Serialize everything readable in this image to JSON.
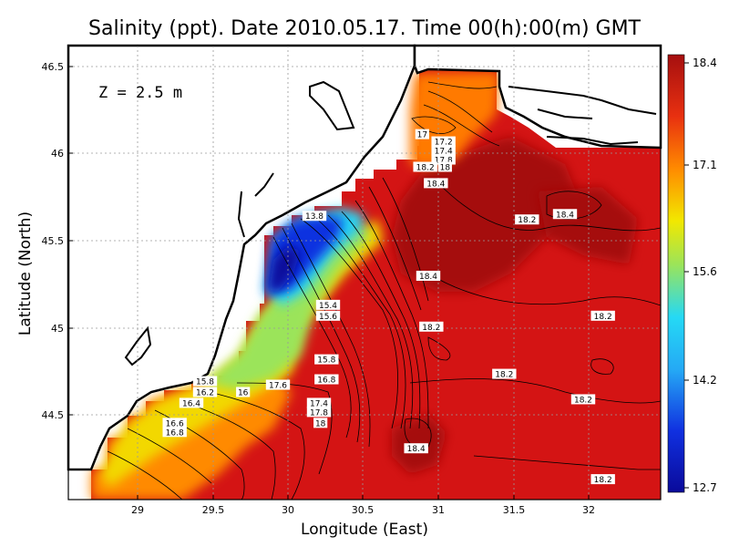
{
  "title": "Salinity (ppt). Date 2010.05.17. Time 00(h):00(m) GMT",
  "depth_label": "Z = 2.5 m",
  "colors": {
    "deep_red": "#a50f0f",
    "red": "#d41414",
    "orange": "#ff8a00",
    "yellow": "#f2e800",
    "green": "#9be45a",
    "cyan": "#25d9f5",
    "blue": "#1030e0",
    "navy": "#0a0a9a",
    "land": "#ffffff",
    "coast": "#000000",
    "grid": "#9a9a9a"
  },
  "chart_data": {
    "type": "heatmap",
    "xlabel": "Longitude (East)",
    "ylabel": "Latitude (North)",
    "xlim": [
      28.55,
      32.45
    ],
    "ylim": [
      44.05,
      46.55
    ],
    "x_ticks": [
      "29",
      "29.5",
      "30",
      "30.5",
      "31",
      "31.5",
      "32"
    ],
    "y_ticks": [
      "44.5",
      "45",
      "45.5",
      "46",
      "46.5"
    ],
    "grid": true,
    "colorbar": {
      "min": 12.7,
      "max": 18.4,
      "ticks": [
        "18.4",
        "17.1",
        "15.6",
        "14.2",
        "12.7"
      ]
    },
    "contour_labels": [
      {
        "text": "13.8",
        "lon": 30.17,
        "lat": 45.61
      },
      {
        "text": "17",
        "lon": 30.88,
        "lat": 46.06
      },
      {
        "text": "17.2",
        "lon": 31.02,
        "lat": 46.02
      },
      {
        "text": "17.4",
        "lon": 31.02,
        "lat": 45.97
      },
      {
        "text": "17.8",
        "lon": 31.02,
        "lat": 45.92
      },
      {
        "text": "18.2",
        "lon": 30.9,
        "lat": 45.88
      },
      {
        "text": "18",
        "lon": 31.03,
        "lat": 45.88
      },
      {
        "text": "18.4",
        "lon": 30.97,
        "lat": 45.79
      },
      {
        "text": "18.2",
        "lon": 31.57,
        "lat": 45.59
      },
      {
        "text": "18.4",
        "lon": 31.82,
        "lat": 45.62
      },
      {
        "text": "18.4",
        "lon": 30.92,
        "lat": 45.28
      },
      {
        "text": "15.4",
        "lon": 30.26,
        "lat": 45.12
      },
      {
        "text": "15.6",
        "lon": 30.26,
        "lat": 45.06
      },
      {
        "text": "18.2",
        "lon": 30.94,
        "lat": 45.0
      },
      {
        "text": "18.2",
        "lon": 32.07,
        "lat": 45.06
      },
      {
        "text": "15.8",
        "lon": 30.25,
        "lat": 44.82
      },
      {
        "text": "16.8",
        "lon": 30.25,
        "lat": 44.71
      },
      {
        "text": "15.8",
        "lon": 29.45,
        "lat": 44.7
      },
      {
        "text": "16.2",
        "lon": 29.45,
        "lat": 44.64
      },
      {
        "text": "16",
        "lon": 29.7,
        "lat": 44.64
      },
      {
        "text": "17.6",
        "lon": 29.93,
        "lat": 44.68
      },
      {
        "text": "18.2",
        "lon": 31.42,
        "lat": 44.74
      },
      {
        "text": "18.2",
        "lon": 31.94,
        "lat": 44.6
      },
      {
        "text": "16.4",
        "lon": 29.36,
        "lat": 44.58
      },
      {
        "text": "17.4",
        "lon": 30.2,
        "lat": 44.58
      },
      {
        "text": "17.8",
        "lon": 30.2,
        "lat": 44.53
      },
      {
        "text": "18",
        "lon": 30.21,
        "lat": 44.47
      },
      {
        "text": "16.6",
        "lon": 29.25,
        "lat": 44.47
      },
      {
        "text": "16.8",
        "lon": 29.25,
        "lat": 44.42
      },
      {
        "text": "18.4",
        "lon": 30.84,
        "lat": 44.33
      },
      {
        "text": "18.2",
        "lon": 32.07,
        "lat": 44.16
      }
    ]
  }
}
